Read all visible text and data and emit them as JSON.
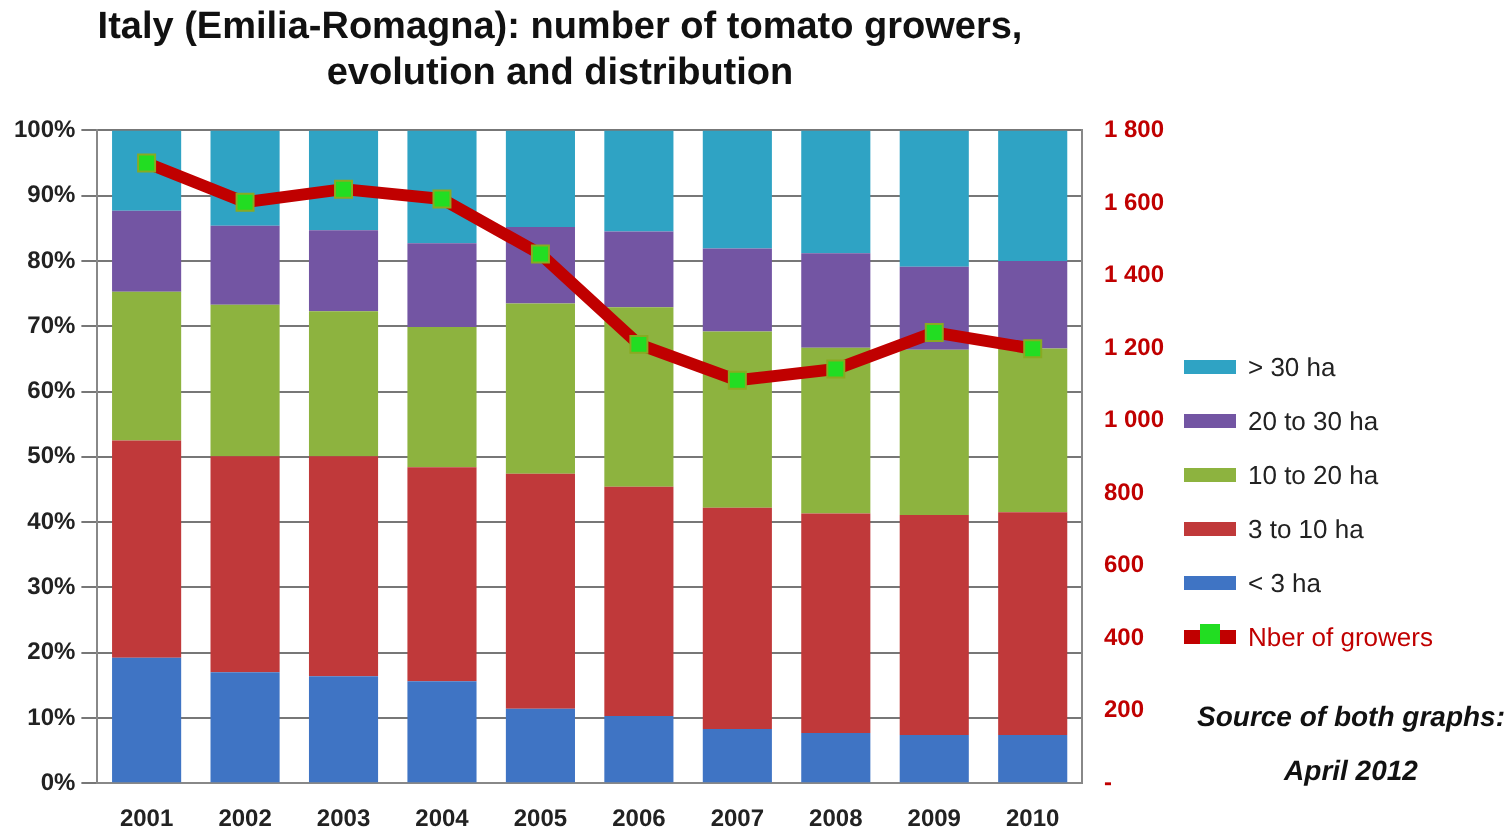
{
  "chart_data": {
    "type": "bar",
    "title": "Italy (Emilia-Romagna): number of tomato growers, evolution and distribution",
    "categories": [
      "2001",
      "2002",
      "2003",
      "2004",
      "2005",
      "2006",
      "2007",
      "2008",
      "2009",
      "2010"
    ],
    "stacked": true,
    "series": [
      {
        "name": "< 3 ha",
        "color": "#3f74c4",
        "values": [
          19.2,
          17.0,
          16.4,
          15.6,
          11.4,
          10.3,
          8.3,
          7.7,
          7.4,
          7.4
        ]
      },
      {
        "name": "3 to 10 ha",
        "color": "#c0393a",
        "values": [
          33.3,
          33.1,
          33.7,
          32.8,
          36.0,
          35.1,
          33.9,
          33.6,
          33.7,
          34.1
        ]
      },
      {
        "name": "10 to 20 ha",
        "color": "#8db33f",
        "values": [
          22.8,
          23.2,
          22.2,
          21.5,
          26.1,
          27.5,
          27.0,
          25.4,
          25.3,
          25.1
        ]
      },
      {
        "name": "20 to 30 ha",
        "color": "#7355a3",
        "values": [
          12.4,
          12.1,
          12.4,
          12.8,
          11.7,
          11.6,
          12.7,
          14.5,
          12.7,
          13.4
        ]
      },
      {
        "name": "> 30 ha",
        "color": "#2fa3c4",
        "values": [
          12.3,
          14.6,
          15.3,
          17.3,
          14.8,
          15.5,
          18.1,
          18.8,
          20.9,
          20.0
        ]
      },
      {
        "name": "Nber of growers",
        "type": "line",
        "axis": "y2",
        "color": "#c00000",
        "marker": "square",
        "values": [
          1710,
          1602,
          1638,
          1611,
          1459,
          1210,
          1111,
          1142,
          1243,
          1198
        ]
      }
    ],
    "ylim": [
      0,
      100
    ],
    "yticks": [
      {
        "value": 0,
        "label": "0%"
      },
      {
        "value": 10,
        "label": "10%"
      },
      {
        "value": 20,
        "label": "20%"
      },
      {
        "value": 30,
        "label": "30%"
      },
      {
        "value": 40,
        "label": "40%"
      },
      {
        "value": 50,
        "label": "50%"
      },
      {
        "value": 60,
        "label": "60%"
      },
      {
        "value": 70,
        "label": "70%"
      },
      {
        "value": 80,
        "label": "80%"
      },
      {
        "value": 90,
        "label": "90%"
      },
      {
        "value": 100,
        "label": "100%"
      }
    ],
    "y2lim": [
      0,
      1800
    ],
    "y2ticks": [
      {
        "value": 0,
        "label": "-"
      },
      200,
      400,
      600,
      800,
      {
        "value": 1000,
        "label": "1 000"
      },
      {
        "value": 1200,
        "label": "1 200"
      },
      {
        "value": 1400,
        "label": "1 400"
      },
      {
        "value": 1600,
        "label": "1 600"
      },
      {
        "value": 1800,
        "label": "1 800"
      }
    ],
    "grid": "y",
    "legend": "right",
    "annotations": [
      "Source of both graphs: April 2012"
    ]
  }
}
